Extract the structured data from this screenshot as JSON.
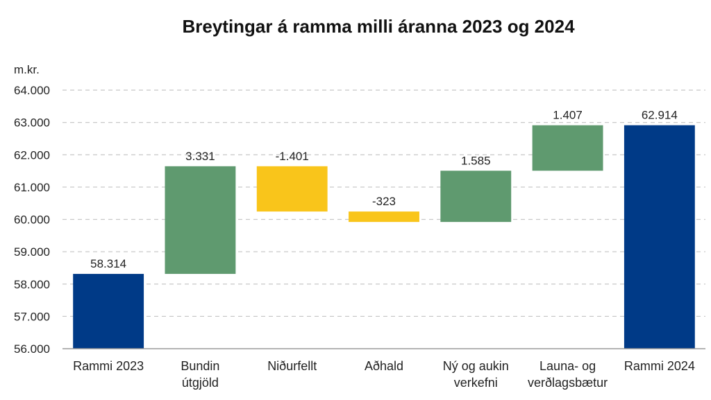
{
  "chart_data": {
    "type": "bar",
    "subtype": "waterfall",
    "title": "Breytingar á ramma milli áranna 2023 og 2024",
    "ylabel": "m.kr.",
    "xlabel": "",
    "ylim": [
      56000,
      64000
    ],
    "yticks": [
      "56.000",
      "57.000",
      "58.000",
      "59.000",
      "60.000",
      "61.000",
      "62.000",
      "63.000",
      "64.000"
    ],
    "grid": true,
    "categories": [
      [
        "Rammi 2023"
      ],
      [
        "Bundin",
        "útgjöld"
      ],
      [
        "Niðurfellt"
      ],
      [
        "Aðhald"
      ],
      [
        "Ný og aukin",
        "verkefni"
      ],
      [
        "Launa- og",
        "verðlagsbætur"
      ],
      [
        "Rammi 2024"
      ]
    ],
    "values": [
      58314,
      3331,
      -1401,
      -323,
      1585,
      1407,
      62914
    ],
    "value_labels": [
      "58.314",
      "3.331",
      "-1.401",
      "-323",
      "1.585",
      "1.407",
      "62.914"
    ],
    "kinds": [
      "total",
      "increase",
      "decrease",
      "decrease",
      "increase",
      "increase",
      "total"
    ],
    "colors": {
      "total": "#003a87",
      "increase": "#5f9a6f",
      "decrease": "#f9c51b"
    }
  }
}
